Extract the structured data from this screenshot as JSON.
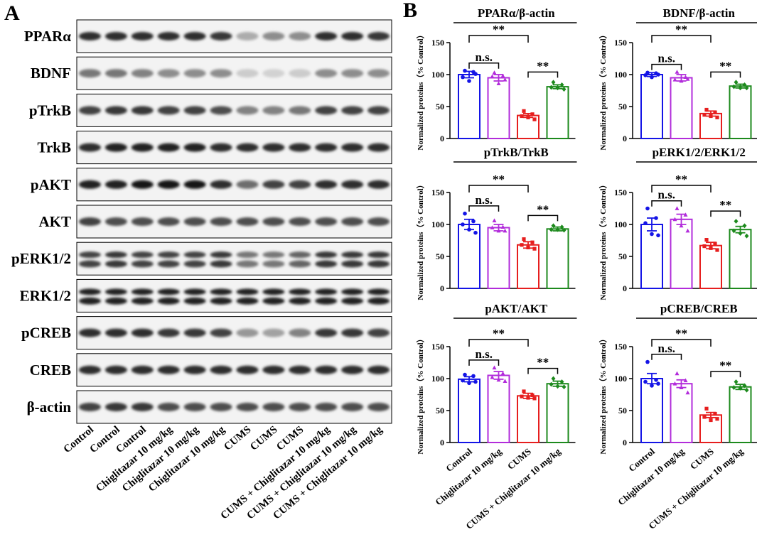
{
  "panel_a": {
    "letter": "A",
    "proteins": [
      "PPARα",
      "BDNF",
      "pTrkB",
      "TrkB",
      "pAKT",
      "AKT",
      "pERK1/2",
      "ERK1/2",
      "pCREB",
      "CREB",
      "β-actin"
    ],
    "lanes": [
      "Control",
      "Control",
      "Control",
      "Chiglitazar 10 mg/kg",
      "Chiglitazar 10 mg/kg",
      "Chiglitazar 10 mg/kg",
      "CUMS",
      "CUMS",
      "CUMS",
      "CUMS + Chiglitazar 10 mg/kg",
      "CUMS + Chiglitazar 10 mg/kg",
      "CUMS + Chiglitazar 10 mg/kg"
    ],
    "band_intensity": [
      [
        0.9,
        0.9,
        0.9,
        0.9,
        0.9,
        0.85,
        0.3,
        0.45,
        0.45,
        0.9,
        0.9,
        0.85
      ],
      [
        0.55,
        0.55,
        0.5,
        0.45,
        0.45,
        0.45,
        0.15,
        0.12,
        0.15,
        0.45,
        0.45,
        0.45
      ],
      [
        0.8,
        0.85,
        0.85,
        0.8,
        0.8,
        0.75,
        0.5,
        0.5,
        0.55,
        0.8,
        0.8,
        0.8
      ],
      [
        0.9,
        0.95,
        0.95,
        0.95,
        0.95,
        0.9,
        0.9,
        0.9,
        0.9,
        0.9,
        0.9,
        0.9
      ],
      [
        0.95,
        0.95,
        1.0,
        1.0,
        1.0,
        0.9,
        0.6,
        0.8,
        0.8,
        0.9,
        0.9,
        0.9
      ],
      [
        0.8,
        0.75,
        0.75,
        0.75,
        0.75,
        0.75,
        0.75,
        0.75,
        0.75,
        0.75,
        0.75,
        0.75
      ],
      [
        0.8,
        0.85,
        0.8,
        0.8,
        0.8,
        0.85,
        0.55,
        0.55,
        0.65,
        0.85,
        0.85,
        0.85
      ],
      [
        0.95,
        0.95,
        0.95,
        0.95,
        0.95,
        0.95,
        0.95,
        0.95,
        0.95,
        0.95,
        0.95,
        0.95
      ],
      [
        0.9,
        0.9,
        0.9,
        0.85,
        0.85,
        0.8,
        0.4,
        0.35,
        0.5,
        0.85,
        0.85,
        0.8
      ],
      [
        0.9,
        0.9,
        0.9,
        0.9,
        0.9,
        0.9,
        0.9,
        0.9,
        0.9,
        0.9,
        0.9,
        0.9
      ],
      [
        0.8,
        0.85,
        0.85,
        0.75,
        0.75,
        0.75,
        0.75,
        0.75,
        0.75,
        0.75,
        0.75,
        0.75
      ]
    ]
  },
  "panel_b": {
    "letter": "B"
  },
  "chart_data": [
    {
      "type": "bar",
      "title": "PPARα/β-actin",
      "ylabel": "Normalized proteins（% Control）",
      "categories": [
        "Control",
        "Chiglitazar 10 mg/kg",
        "CUMS",
        "CUMS + Chiglitazar 10 mg/kg"
      ],
      "values": [
        100,
        95,
        36,
        81
      ],
      "errors": [
        5,
        5,
        3,
        3
      ],
      "points": [
        [
          106,
          104,
          96,
          90,
          101
        ],
        [
          103,
          98,
          97,
          86,
          92
        ],
        [
          43,
          38,
          35,
          33,
          30
        ],
        [
          88,
          84,
          80,
          79,
          77
        ]
      ],
      "colors": [
        "#1414e6",
        "#b22cdb",
        "#e61e1e",
        "#1d8a1d"
      ],
      "ylim": [
        0,
        150
      ],
      "yticks": [
        0,
        50,
        100,
        150
      ],
      "significance": [
        {
          "from": 0,
          "to": 2,
          "label": "**",
          "level": 3
        },
        {
          "from": 0,
          "to": 1,
          "label": "n.s.",
          "level": 1
        },
        {
          "from": 2,
          "to": 3,
          "label": "**",
          "level": 1
        }
      ],
      "show_xlabels": false
    },
    {
      "type": "bar",
      "title": "BDNF/β-actin",
      "ylabel": "Normalized proteins（% Control）",
      "categories": [
        "Control",
        "Chiglitazar 10 mg/kg",
        "CUMS",
        "CUMS + Chiglitazar 10 mg/kg"
      ],
      "values": [
        100,
        95,
        39,
        82
      ],
      "errors": [
        3,
        5,
        4,
        3
      ],
      "points": [
        [
          103,
          102,
          99,
          96,
          100
        ],
        [
          104,
          96,
          92,
          90,
          93
        ],
        [
          45,
          41,
          37,
          35,
          33
        ],
        [
          88,
          84,
          81,
          79,
          79
        ]
      ],
      "colors": [
        "#1414e6",
        "#b22cdb",
        "#e61e1e",
        "#1d8a1d"
      ],
      "ylim": [
        0,
        150
      ],
      "yticks": [
        0,
        50,
        100,
        150
      ],
      "significance": [
        {
          "from": 0,
          "to": 2,
          "label": "**",
          "level": 3
        },
        {
          "from": 0,
          "to": 1,
          "label": "n.s.",
          "level": 1
        },
        {
          "from": 2,
          "to": 3,
          "label": "**",
          "level": 1
        }
      ],
      "show_xlabels": false
    },
    {
      "type": "bar",
      "title": "pTrkB/TrkB",
      "ylabel": "Normalized proteins（% Control）",
      "categories": [
        "Control",
        "Chiglitazar 10 mg/kg",
        "CUMS",
        "CUMS + Chiglitazar 10 mg/kg"
      ],
      "values": [
        100,
        95,
        68,
        93
      ],
      "errors": [
        8,
        5,
        5,
        3
      ],
      "points": [
        [
          117,
          105,
          100,
          92,
          87
        ],
        [
          106,
          96,
          95,
          90,
          90
        ],
        [
          77,
          72,
          68,
          64,
          62
        ],
        [
          98,
          96,
          92,
          92,
          91
        ]
      ],
      "colors": [
        "#1414e6",
        "#b22cdb",
        "#e61e1e",
        "#1d8a1d"
      ],
      "ylim": [
        0,
        150
      ],
      "yticks": [
        0,
        50,
        100,
        150
      ],
      "significance": [
        {
          "from": 0,
          "to": 2,
          "label": "**",
          "level": 3
        },
        {
          "from": 0,
          "to": 1,
          "label": "n.s.",
          "level": 1
        },
        {
          "from": 2,
          "to": 3,
          "label": "**",
          "level": 1
        }
      ],
      "show_xlabels": false
    },
    {
      "type": "bar",
      "title": "pERK1/2/ERK1/2",
      "ylabel": "Normalized proteins（% Control）",
      "categories": [
        "Control",
        "Chiglitazar 10 mg/kg",
        "CUMS",
        "CUMS + Chiglitazar 10 mg/kg"
      ],
      "values": [
        100,
        108,
        67,
        92
      ],
      "errors": [
        10,
        8,
        5,
        5
      ],
      "points": [
        [
          125,
          110,
          102,
          85,
          83
        ],
        [
          125,
          115,
          108,
          98,
          90
        ],
        [
          76,
          70,
          66,
          63,
          60
        ],
        [
          105,
          98,
          90,
          86,
          82
        ]
      ],
      "colors": [
        "#1414e6",
        "#b22cdb",
        "#e61e1e",
        "#1d8a1d"
      ],
      "ylim": [
        0,
        150
      ],
      "yticks": [
        0,
        50,
        100,
        150
      ],
      "significance": [
        {
          "from": 0,
          "to": 2,
          "label": "**",
          "level": 3
        },
        {
          "from": 0,
          "to": 1,
          "label": "n.s.",
          "level": 1
        },
        {
          "from": 2,
          "to": 3,
          "label": "**",
          "level": 1
        }
      ],
      "show_xlabels": false
    },
    {
      "type": "bar",
      "title": "pAKT/AKT",
      "ylabel": "Normalized proteins（% Control）",
      "categories": [
        "Control",
        "Chiglitazar 10 mg/kg",
        "CUMS",
        "CUMS + Chiglitazar 10 mg/kg"
      ],
      "values": [
        99,
        105,
        73,
        92
      ],
      "errors": [
        4,
        6,
        4,
        4
      ],
      "points": [
        [
          106,
          104,
          97,
          93,
          95
        ],
        [
          117,
          108,
          102,
          98,
          96
        ],
        [
          80,
          74,
          72,
          70,
          69
        ],
        [
          100,
          95,
          91,
          88,
          87
        ]
      ],
      "colors": [
        "#1414e6",
        "#b22cdb",
        "#e61e1e",
        "#1d8a1d"
      ],
      "ylim": [
        0,
        150
      ],
      "yticks": [
        0,
        50,
        100,
        150
      ],
      "significance": [
        {
          "from": 0,
          "to": 2,
          "label": "**",
          "level": 3
        },
        {
          "from": 0,
          "to": 1,
          "label": "n.s.",
          "level": 1
        },
        {
          "from": 2,
          "to": 3,
          "label": "**",
          "level": 1
        }
      ],
      "show_xlabels": true
    },
    {
      "type": "bar",
      "title": "pCREB/CREB",
      "ylabel": "Normalized proteins（% Control）",
      "categories": [
        "Control",
        "Chiglitazar 10 mg/kg",
        "CUMS",
        "CUMS + Chiglitazar 10 mg/kg"
      ],
      "values": [
        100,
        92,
        43,
        87
      ],
      "errors": [
        8,
        6,
        4,
        4
      ],
      "points": [
        [
          126,
          98,
          95,
          89,
          92
        ],
        [
          108,
          97,
          92,
          86,
          78
        ],
        [
          53,
          45,
          40,
          35,
          37
        ],
        [
          95,
          89,
          86,
          85,
          82
        ]
      ],
      "colors": [
        "#1414e6",
        "#b22cdb",
        "#e61e1e",
        "#1d8a1d"
      ],
      "ylim": [
        0,
        150
      ],
      "yticks": [
        0,
        50,
        100,
        150
      ],
      "significance": [
        {
          "from": 0,
          "to": 2,
          "label": "**",
          "level": 3
        },
        {
          "from": 0,
          "to": 1,
          "label": "n.s.",
          "level": 1
        },
        {
          "from": 2,
          "to": 3,
          "label": "**",
          "level": 1
        }
      ],
      "show_xlabels": true
    }
  ]
}
